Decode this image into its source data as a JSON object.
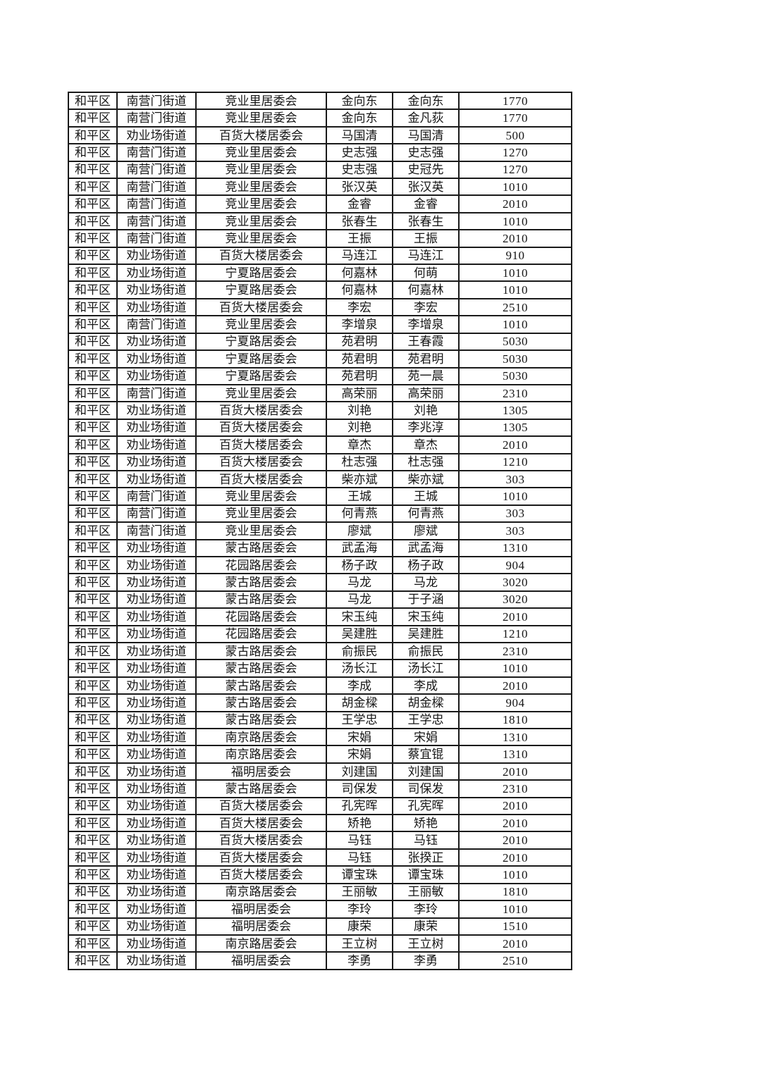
{
  "colors": {
    "background": "#ffffff",
    "border": "#1a1a1a",
    "text": "#151515"
  },
  "table": {
    "rows": [
      [
        "和平区",
        "南营门街道",
        "竞业里居委会",
        "金向东",
        "金向东",
        "1770"
      ],
      [
        "和平区",
        "南营门街道",
        "竞业里居委会",
        "金向东",
        "金凡荻",
        "1770"
      ],
      [
        "和平区",
        "劝业场街道",
        "百货大楼居委会",
        "马国清",
        "马国清",
        "500"
      ],
      [
        "和平区",
        "南营门街道",
        "竞业里居委会",
        "史志强",
        "史志强",
        "1270"
      ],
      [
        "和平区",
        "南营门街道",
        "竞业里居委会",
        "史志强",
        "史冠先",
        "1270"
      ],
      [
        "和平区",
        "南营门街道",
        "竞业里居委会",
        "张汉英",
        "张汉英",
        "1010"
      ],
      [
        "和平区",
        "南营门街道",
        "竞业里居委会",
        "金睿",
        "金睿",
        "2010"
      ],
      [
        "和平区",
        "南营门街道",
        "竞业里居委会",
        "张春生",
        "张春生",
        "1010"
      ],
      [
        "和平区",
        "南营门街道",
        "竞业里居委会",
        "王振",
        "王振",
        "2010"
      ],
      [
        "和平区",
        "劝业场街道",
        "百货大楼居委会",
        "马连江",
        "马连江",
        "910"
      ],
      [
        "和平区",
        "劝业场街道",
        "宁夏路居委会",
        "何嘉林",
        "何萌",
        "1010"
      ],
      [
        "和平区",
        "劝业场街道",
        "宁夏路居委会",
        "何嘉林",
        "何嘉林",
        "1010"
      ],
      [
        "和平区",
        "劝业场街道",
        "百货大楼居委会",
        "李宏",
        "李宏",
        "2510"
      ],
      [
        "和平区",
        "南营门街道",
        "竞业里居委会",
        "李增泉",
        "李增泉",
        "1010"
      ],
      [
        "和平区",
        "劝业场街道",
        "宁夏路居委会",
        "苑君明",
        "王春霞",
        "5030"
      ],
      [
        "和平区",
        "劝业场街道",
        "宁夏路居委会",
        "苑君明",
        "苑君明",
        "5030"
      ],
      [
        "和平区",
        "劝业场街道",
        "宁夏路居委会",
        "苑君明",
        "苑一晨",
        "5030"
      ],
      [
        "和平区",
        "南营门街道",
        "竞业里居委会",
        "高荣丽",
        "高荣丽",
        "2310"
      ],
      [
        "和平区",
        "劝业场街道",
        "百货大楼居委会",
        "刘艳",
        "刘艳",
        "1305"
      ],
      [
        "和平区",
        "劝业场街道",
        "百货大楼居委会",
        "刘艳",
        "李兆淳",
        "1305"
      ],
      [
        "和平区",
        "劝业场街道",
        "百货大楼居委会",
        "章杰",
        "章杰",
        "2010"
      ],
      [
        "和平区",
        "劝业场街道",
        "百货大楼居委会",
        "杜志强",
        "杜志强",
        "1210"
      ],
      [
        "和平区",
        "劝业场街道",
        "百货大楼居委会",
        "柴亦斌",
        "柴亦斌",
        "303"
      ],
      [
        "和平区",
        "南营门街道",
        "竞业里居委会",
        "王城",
        "王城",
        "1010"
      ],
      [
        "和平区",
        "南营门街道",
        "竞业里居委会",
        "何青燕",
        "何青燕",
        "303"
      ],
      [
        "和平区",
        "南营门街道",
        "竞业里居委会",
        "廖斌",
        "廖斌",
        "303"
      ],
      [
        "和平区",
        "劝业场街道",
        "蒙古路居委会",
        "武孟海",
        "武孟海",
        "1310"
      ],
      [
        "和平区",
        "劝业场街道",
        "花园路居委会",
        "杨子政",
        "杨子政",
        "904"
      ],
      [
        "和平区",
        "劝业场街道",
        "蒙古路居委会",
        "马龙",
        "马龙",
        "3020"
      ],
      [
        "和平区",
        "劝业场街道",
        "蒙古路居委会",
        "马龙",
        "于子涵",
        "3020"
      ],
      [
        "和平区",
        "劝业场街道",
        "花园路居委会",
        "宋玉纯",
        "宋玉纯",
        "2010"
      ],
      [
        "和平区",
        "劝业场街道",
        "花园路居委会",
        "吴建胜",
        "吴建胜",
        "1210"
      ],
      [
        "和平区",
        "劝业场街道",
        "蒙古路居委会",
        "俞振民",
        "俞振民",
        "2310"
      ],
      [
        "和平区",
        "劝业场街道",
        "蒙古路居委会",
        "汤长江",
        "汤长江",
        "1010"
      ],
      [
        "和平区",
        "劝业场街道",
        "蒙古路居委会",
        "李成",
        "李成",
        "2010"
      ],
      [
        "和平区",
        "劝业场街道",
        "蒙古路居委会",
        "胡金樑",
        "胡金樑",
        "904"
      ],
      [
        "和平区",
        "劝业场街道",
        "蒙古路居委会",
        "王学忠",
        "王学忠",
        "1810"
      ],
      [
        "和平区",
        "劝业场街道",
        "南京路居委会",
        "宋娟",
        "宋娟",
        "1310"
      ],
      [
        "和平区",
        "劝业场街道",
        "南京路居委会",
        "宋娟",
        "蔡宜锟",
        "1310"
      ],
      [
        "和平区",
        "劝业场街道",
        "福明居委会",
        "刘建国",
        "刘建国",
        "2010"
      ],
      [
        "和平区",
        "劝业场街道",
        "蒙古路居委会",
        "司保发",
        "司保发",
        "2310"
      ],
      [
        "和平区",
        "劝业场街道",
        "百货大楼居委会",
        "孔宪晖",
        "孔宪晖",
        "2010"
      ],
      [
        "和平区",
        "劝业场街道",
        "百货大楼居委会",
        "矫艳",
        "矫艳",
        "2010"
      ],
      [
        "和平区",
        "劝业场街道",
        "百货大楼居委会",
        "马钰",
        "马钰",
        "2010"
      ],
      [
        "和平区",
        "劝业场街道",
        "百货大楼居委会",
        "马钰",
        "张揆正",
        "2010"
      ],
      [
        "和平区",
        "劝业场街道",
        "百货大楼居委会",
        "谭宝珠",
        "谭宝珠",
        "1010"
      ],
      [
        "和平区",
        "劝业场街道",
        "南京路居委会",
        "王丽敏",
        "王丽敏",
        "1810"
      ],
      [
        "和平区",
        "劝业场街道",
        "福明居委会",
        "李玲",
        "李玲",
        "1010"
      ],
      [
        "和平区",
        "劝业场街道",
        "福明居委会",
        "康荣",
        "康荣",
        "1510"
      ],
      [
        "和平区",
        "劝业场街道",
        "南京路居委会",
        "王立树",
        "王立树",
        "2010"
      ],
      [
        "和平区",
        "劝业场街道",
        "福明居委会",
        "李勇",
        "李勇",
        "2510"
      ]
    ]
  }
}
